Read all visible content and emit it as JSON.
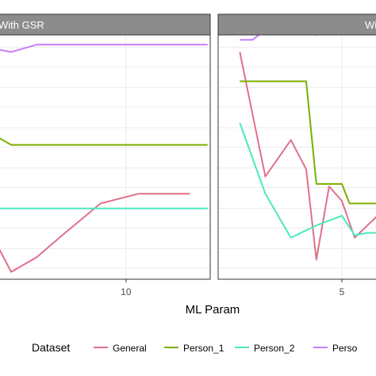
{
  "chart_data": {
    "type": "line",
    "xlabel": "ML Param",
    "legend": {
      "title": "Dataset",
      "placement": "bottom",
      "entries": [
        "General",
        "Person_1",
        "Person_2",
        "Perso"
      ]
    },
    "colors": {
      "General": "#e0708a",
      "Person_1": "#7cae00",
      "Person_2": "#4de8c0",
      "Person_3": "#c77cff",
      "strip": "#8c8c8c",
      "panel_border": "#333333",
      "grid": "#ebebeb"
    },
    "panels": [
      {
        "strip_label": "With GSR",
        "xlim": [
          0,
          16.6
        ],
        "x_ticks": [
          10
        ],
        "ylim": [
          0,
          1
        ],
        "grid": true,
        "series": [
          {
            "key": "General",
            "x": [
              0,
              1,
              3,
              5,
              8,
              11,
              15
            ],
            "y": [
              0.13,
              0.03,
              0.09,
              0.18,
              0.31,
              0.35,
              0.35
            ]
          },
          {
            "key": "Person_1",
            "x": [
              0,
              1,
              16.4
            ],
            "y": [
              0.58,
              0.55,
              0.55
            ]
          },
          {
            "key": "Person_2",
            "x": [
              0,
              16.4
            ],
            "y": [
              0.29,
              0.29
            ]
          },
          {
            "key": "Person_3",
            "x": [
              0,
              1,
              3,
              16.4
            ],
            "y": [
              0.94,
              0.93,
              0.96,
              0.96
            ]
          }
        ]
      },
      {
        "strip_label": "Wi",
        "xlim": [
          0.15,
          6.4
        ],
        "x_ticks": [
          5
        ],
        "ylim": [
          0,
          1
        ],
        "grid": true,
        "series": [
          {
            "key": "General",
            "x": [
              1,
              2,
              3,
              3.6,
              4,
              4.5,
              5,
              5.5,
              6,
              6.4
            ],
            "y": [
              0.93,
              0.42,
              0.57,
              0.45,
              0.08,
              0.38,
              0.32,
              0.17,
              0.22,
              0.26
            ]
          },
          {
            "key": "Person_1",
            "x": [
              1,
              3.6,
              4,
              5,
              5.3,
              6.4
            ],
            "y": [
              0.81,
              0.81,
              0.39,
              0.39,
              0.31,
              0.31
            ]
          },
          {
            "key": "Person_2",
            "x": [
              1,
              2,
              3,
              4,
              5,
              5.5,
              6,
              6.4
            ],
            "y": [
              0.64,
              0.35,
              0.17,
              0.22,
              0.26,
              0.18,
              0.19,
              0.19
            ]
          },
          {
            "key": "Person_3",
            "x": [
              1,
              1.5,
              2,
              3,
              4,
              5,
              6,
              6.4
            ],
            "y": [
              0.98,
              0.98,
              1.02,
              1.02,
              1.0,
              1.05,
              1.04,
              1.01
            ]
          }
        ]
      }
    ]
  }
}
